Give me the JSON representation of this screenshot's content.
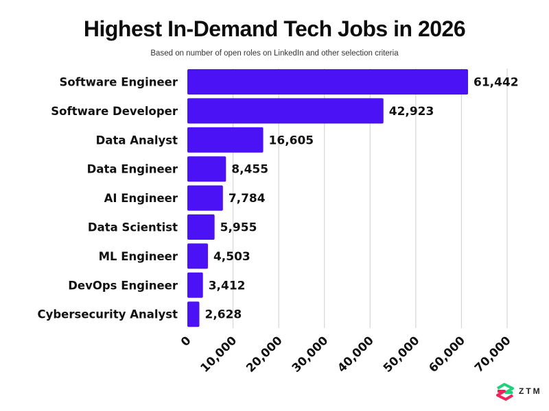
{
  "chart_data": {
    "type": "bar",
    "orientation": "horizontal",
    "title": "Highest In-Demand Tech Jobs in 2026",
    "subtitle": "Based on number of open roles on LinkedIn and other selection criteria",
    "xlabel": "",
    "ylabel": "",
    "categories": [
      "Software Engineer",
      "Software Developer",
      "Data Analyst",
      "Data Engineer",
      "AI Engineer",
      "Data Scientist",
      "ML Engineer",
      "DevOps Engineer",
      "Cybersecurity Analyst"
    ],
    "values": [
      61442,
      42923,
      16605,
      8455,
      7784,
      5955,
      4503,
      3412,
      2628
    ],
    "value_labels": [
      "61,442",
      "42,923",
      "16,605",
      "8,455",
      "7,784",
      "5,955",
      "4,503",
      "3,412",
      "2,628"
    ],
    "xlim": [
      0,
      70000
    ],
    "x_ticks": [
      0,
      10000,
      20000,
      30000,
      40000,
      50000,
      60000,
      70000
    ],
    "x_tick_labels": [
      "0",
      "10,000",
      "20,000",
      "30,000",
      "40,000",
      "50,000",
      "60,000",
      "70,000"
    ],
    "grid": true,
    "legend": "none",
    "bar_color": "#4a12f5"
  },
  "logo": {
    "text": "ZTM",
    "colors": {
      "green": "#1fd17a",
      "red": "#f0245a"
    }
  }
}
